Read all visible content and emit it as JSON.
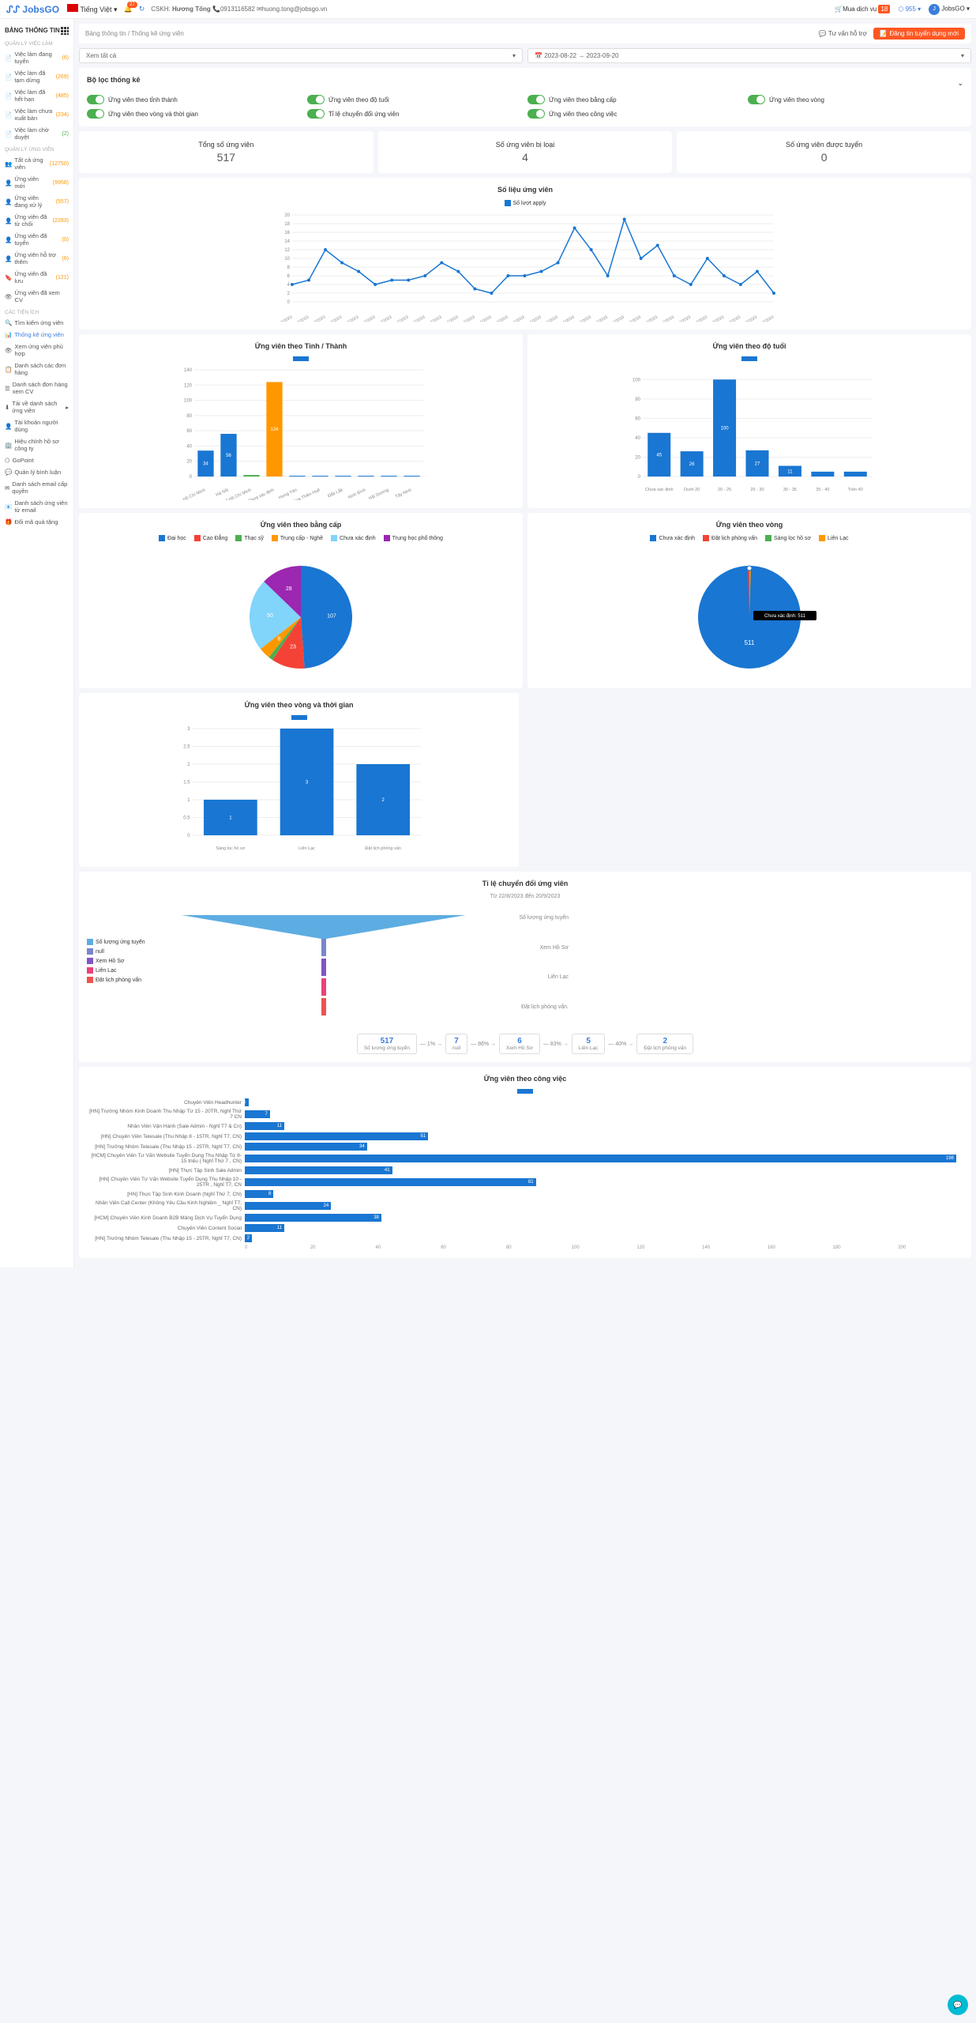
{
  "top": {
    "brand": "JobsGO",
    "lang": "Tiếng Việt",
    "notif_count": "27",
    "cskh_label": "CSKH:",
    "cskh_name": "Hương Tống",
    "phone": "0913116582",
    "email": "huong.tong@jobsgo.vn",
    "mua": "Mua dịch vụ",
    "mua_badge": "18",
    "gpoint": "955",
    "brand2": "JobsGO"
  },
  "header": {
    "title": "BẢNG THÔNG TIN",
    "bc1": "Bảng thông tin",
    "bc2": "Thống kê ứng viên",
    "support": "Tư vấn hỗ trợ",
    "post": "Đăng tin tuyển dụng mới"
  },
  "filters": {
    "all": "Xem tất cả",
    "date": "2023-08-22 → 2023-09-20"
  },
  "sb": {
    "s1": "QUẢN LÝ VIỆC LÀM",
    "i1": "Việc làm đang tuyển",
    "c1": "(6)",
    "i2": "Việc làm đã tạm dừng",
    "c2": "(269)",
    "i3": "Việc làm đã hết hạn",
    "c3": "(485)",
    "i4": "Việc làm chưa xuất bản",
    "c4": "(234)",
    "i5": "Việc làm chờ duyệt",
    "c5": "(2)",
    "s2": "QUẢN LÝ ỨNG VIÊN",
    "i6": "Tất cả ứng viên",
    "c6": "(12750)",
    "i7": "Ứng viên mới",
    "c7": "(9958)",
    "i8": "Ứng viên đang xử lý",
    "c8": "(557)",
    "i9": "Ứng viên đã từ chối",
    "c9": "(2283)",
    "i10": "Ứng viên đã tuyển",
    "c10": "(0)",
    "i11": "Ứng viên hỗ trợ thêm",
    "c11": "(6)",
    "i12": "Ứng viên đã lưu",
    "c12": "(121)",
    "i13": "Ứng viên đã xem CV",
    "s3": "CÁC TIỆN ÍCH",
    "i14": "Tìm kiếm ứng viên",
    "i15": "Thống kê ứng viên",
    "i16": "Xem ứng viên phù hợp",
    "i17": "Danh sách các đơn hàng",
    "i18": "Danh sách đơn hàng xem CV",
    "i19": "Tải về danh sách ứng viên",
    "i20": "Tài khoản người dùng",
    "i21": "Hiệu chỉnh hồ sơ công ty",
    "i22": "GoPoint",
    "i23": "Quản lý bình luận",
    "i24": "Danh sách email cấp quyền",
    "i25": "Danh sách ứng viên từ email",
    "i26": "Đổi mã quà tặng"
  },
  "filter_panel": {
    "title": "Bộ lọc thống kê",
    "t1": "Ứng viên theo tỉnh thành",
    "t2": "Ứng viên theo độ tuổi",
    "t3": "Ứng viên theo bằng cấp",
    "t4": "Ứng viên theo vòng",
    "t5": "Ứng viên theo vòng và thời gian",
    "t6": "Tỉ lệ chuyển đổi ứng viên",
    "t7": "Ứng viên theo công việc"
  },
  "stats": {
    "l1": "Tổng số ứng viên",
    "v1": "517",
    "l2": "Số ứng viên bị loại",
    "v2": "4",
    "l3": "Số ứng viên được tuyển",
    "v3": "0"
  },
  "line_chart": {
    "title": "Số liệu ứng viên",
    "legend": "Số lượt apply",
    "color": "#1976d2",
    "ymax": 20,
    "dates": [
      "22/08/2023",
      "23/08/2023",
      "24/08/2023",
      "25/08/2023",
      "26/08/2023",
      "27/08/2023",
      "28/08/2023",
      "29/08/2023",
      "30/08/2023",
      "31/08/2023",
      "01/09/2023",
      "02/09/2023",
      "03/09/2023",
      "04/09/2023",
      "05/09/2023",
      "06/09/2023",
      "07/09/2023",
      "08/09/2023",
      "09/09/2023",
      "10/09/2023",
      "11/09/2023",
      "12/09/2023",
      "13/09/2023",
      "14/09/2023",
      "15/09/2023",
      "16/09/2023",
      "17/09/2023",
      "18/09/2023",
      "19/09/2023",
      "20/09/2023"
    ],
    "values": [
      4,
      5,
      12,
      9,
      7,
      4,
      5,
      5,
      6,
      9,
      7,
      3,
      2,
      6,
      6,
      7,
      9,
      17,
      12,
      6,
      19,
      10,
      13,
      6,
      4,
      10,
      6,
      4,
      7,
      2
    ]
  },
  "province": {
    "title": "Ứng viên theo Tỉnh / Thành",
    "color": "#1976d2",
    "color2": "#ff9800",
    "labels": [
      "Hồ Chí Minh",
      "Hà Nội",
      "Thành phố Hồ Chí Minh",
      "Chưa xác định",
      "Hưng Yên",
      "Thừa Thiên Huế",
      "Đắk Lắk",
      "Ninh Bình",
      "Hải Dương",
      "Tây Ninh"
    ],
    "values": [
      34,
      56,
      2,
      124,
      1,
      1,
      1,
      1,
      1,
      1
    ],
    "colors": [
      "#1976d2",
      "#1976d2",
      "#4caf50",
      "#ff9800",
      "#1976d2",
      "#1976d2",
      "#1976d2",
      "#1976d2",
      "#1976d2",
      "#1976d2"
    ]
  },
  "age": {
    "title": "Ứng viên theo độ tuổi",
    "color": "#1976d2",
    "labels": [
      "Chưa xác định",
      "Dưới 20",
      "20 - 25",
      "25 - 30",
      "30 - 35",
      "35 - 40",
      "Trên 40"
    ],
    "values": [
      45,
      26,
      100,
      27,
      11,
      5,
      5
    ]
  },
  "degree": {
    "title": "Ứng viên theo bằng cấp",
    "legend": [
      {
        "l": "Đại học",
        "c": "#1976d2"
      },
      {
        "l": "Cao Đẳng",
        "c": "#f44336"
      },
      {
        "l": "Thạc sỹ",
        "c": "#4caf50"
      },
      {
        "l": "Trung cấp - Nghề",
        "c": "#ff9800"
      },
      {
        "l": "Chưa xác định",
        "c": "#81d4fa"
      },
      {
        "l": "Trung học phổ thông",
        "c": "#9c27b0"
      }
    ],
    "slices": [
      {
        "v": 107,
        "c": "#1976d2"
      },
      {
        "v": 23,
        "c": "#f44336"
      },
      {
        "v": 3,
        "c": "#4caf50"
      },
      {
        "v": 8,
        "c": "#ff9800"
      },
      {
        "v": 50,
        "c": "#81d4fa"
      },
      {
        "v": 28,
        "c": "#9c27b0"
      }
    ]
  },
  "round": {
    "title": "Ứng viên theo vòng",
    "tooltip": "Chưa xác định: 511",
    "legend": [
      {
        "l": "Chưa xác định",
        "c": "#1976d2"
      },
      {
        "l": "Đặt lịch phỏng vấn",
        "c": "#f44336"
      },
      {
        "l": "Sàng lọc hồ sơ",
        "c": "#4caf50"
      },
      {
        "l": "Liên Lạc",
        "c": "#ff9800"
      }
    ],
    "main_value": "511"
  },
  "round_time": {
    "title": "Ứng viên theo vòng và thời gian",
    "color": "#1976d2",
    "labels": [
      "Sàng lọc hồ sơ",
      "Liên Lạc",
      "Đặt lịch phỏng vấn"
    ],
    "values": [
      1,
      3,
      2
    ],
    "ymax": 3
  },
  "funnel": {
    "title": "Tỉ lệ chuyển đổi ứng viên",
    "subtitle": "Từ 22/8/2023 đến 20/9/2023",
    "legend": [
      {
        "l": "Số lượng ứng tuyển",
        "c": "#5dade2"
      },
      {
        "l": "null",
        "c": "#7986cb"
      },
      {
        "l": "Xem Hồ Sơ",
        "c": "#7e57c2"
      },
      {
        "l": "Liên Lạc",
        "c": "#ec407a"
      },
      {
        "l": "Đặt lịch phỏng vấn",
        "c": "#ef5350"
      }
    ],
    "right_labels": [
      "Số lượng ứng tuyển",
      "Xem Hồ Sơ",
      "Liên Lạc",
      "Đặt lịch phỏng vấn."
    ],
    "steps": [
      {
        "n": "517",
        "l": "Số lượng ứng tuyển"
      },
      {
        "n": "7",
        "l": "null"
      },
      {
        "n": "6",
        "l": "Xem Hồ Sơ"
      },
      {
        "n": "5",
        "l": "Liên Lạc"
      },
      {
        "n": "2",
        "l": "Đặt lịch phỏng vấn"
      }
    ],
    "pcts": [
      "1%",
      "86%",
      "83%",
      "40%"
    ]
  },
  "by_job": {
    "title": "Ứng viên theo công việc",
    "color": "#1976d2",
    "max": 200,
    "rows": [
      {
        "l": "Chuyên Viên Headhunter",
        "v": 1
      },
      {
        "l": "[HN] Trưởng Nhóm Kinh Doanh Thu Nhập Từ 15 - 20TR, Nghỉ Thứ 7 CN",
        "v": 7
      },
      {
        "l": "Nhân Viên Vận Hành (Sale Admin - Nghỉ T7 & Cn)",
        "v": 11
      },
      {
        "l": "[HN] Chuyên Viên Telesale (Thu Nhập 8 - 15TR, Nghỉ T7, CN)",
        "v": 51
      },
      {
        "l": "[HN] Trưởng Nhóm Telesale (Thu Nhập 15 - 25TR, Nghỉ T7, CN)",
        "v": 34
      },
      {
        "l": "[HCM] Chuyên Viên Tư Vấn Website Tuyển Dụng Thu Nhập Từ 8-15 triệu ( Nghỉ Thứ 7 , CN)",
        "v": 198
      },
      {
        "l": "[HN] Thực Tập Sinh Sale Admin",
        "v": 41
      },
      {
        "l": "[HN] Chuyên Viên Tư Vấn Website Tuyển Dụng Thu Nhập 10 - 25TR , Nghỉ T7, CN",
        "v": 81
      },
      {
        "l": "[HN] Thực Tập Sinh Kinh Doanh (Nghỉ Thứ 7, CN)",
        "v": 8
      },
      {
        "l": "Nhân Viên Call Center (Không Yêu Cầu Kinh Nghiệm _ Nghỉ T7, CN)",
        "v": 24
      },
      {
        "l": "[HCM] Chuyên Viên Kinh Doanh B2B Mảng Dịch Vụ Tuyển Dụng",
        "v": 38
      },
      {
        "l": "Chuyên Viên Content Social",
        "v": 11
      },
      {
        "l": "[HN] Trưởng Nhóm Telesale (Thu Nhập 15 - 25TR, Nghỉ T7, CN)",
        "v": 2
      }
    ],
    "xticks": [
      "0",
      "20",
      "40",
      "60",
      "80",
      "100",
      "120",
      "140",
      "160",
      "180",
      "200"
    ]
  }
}
